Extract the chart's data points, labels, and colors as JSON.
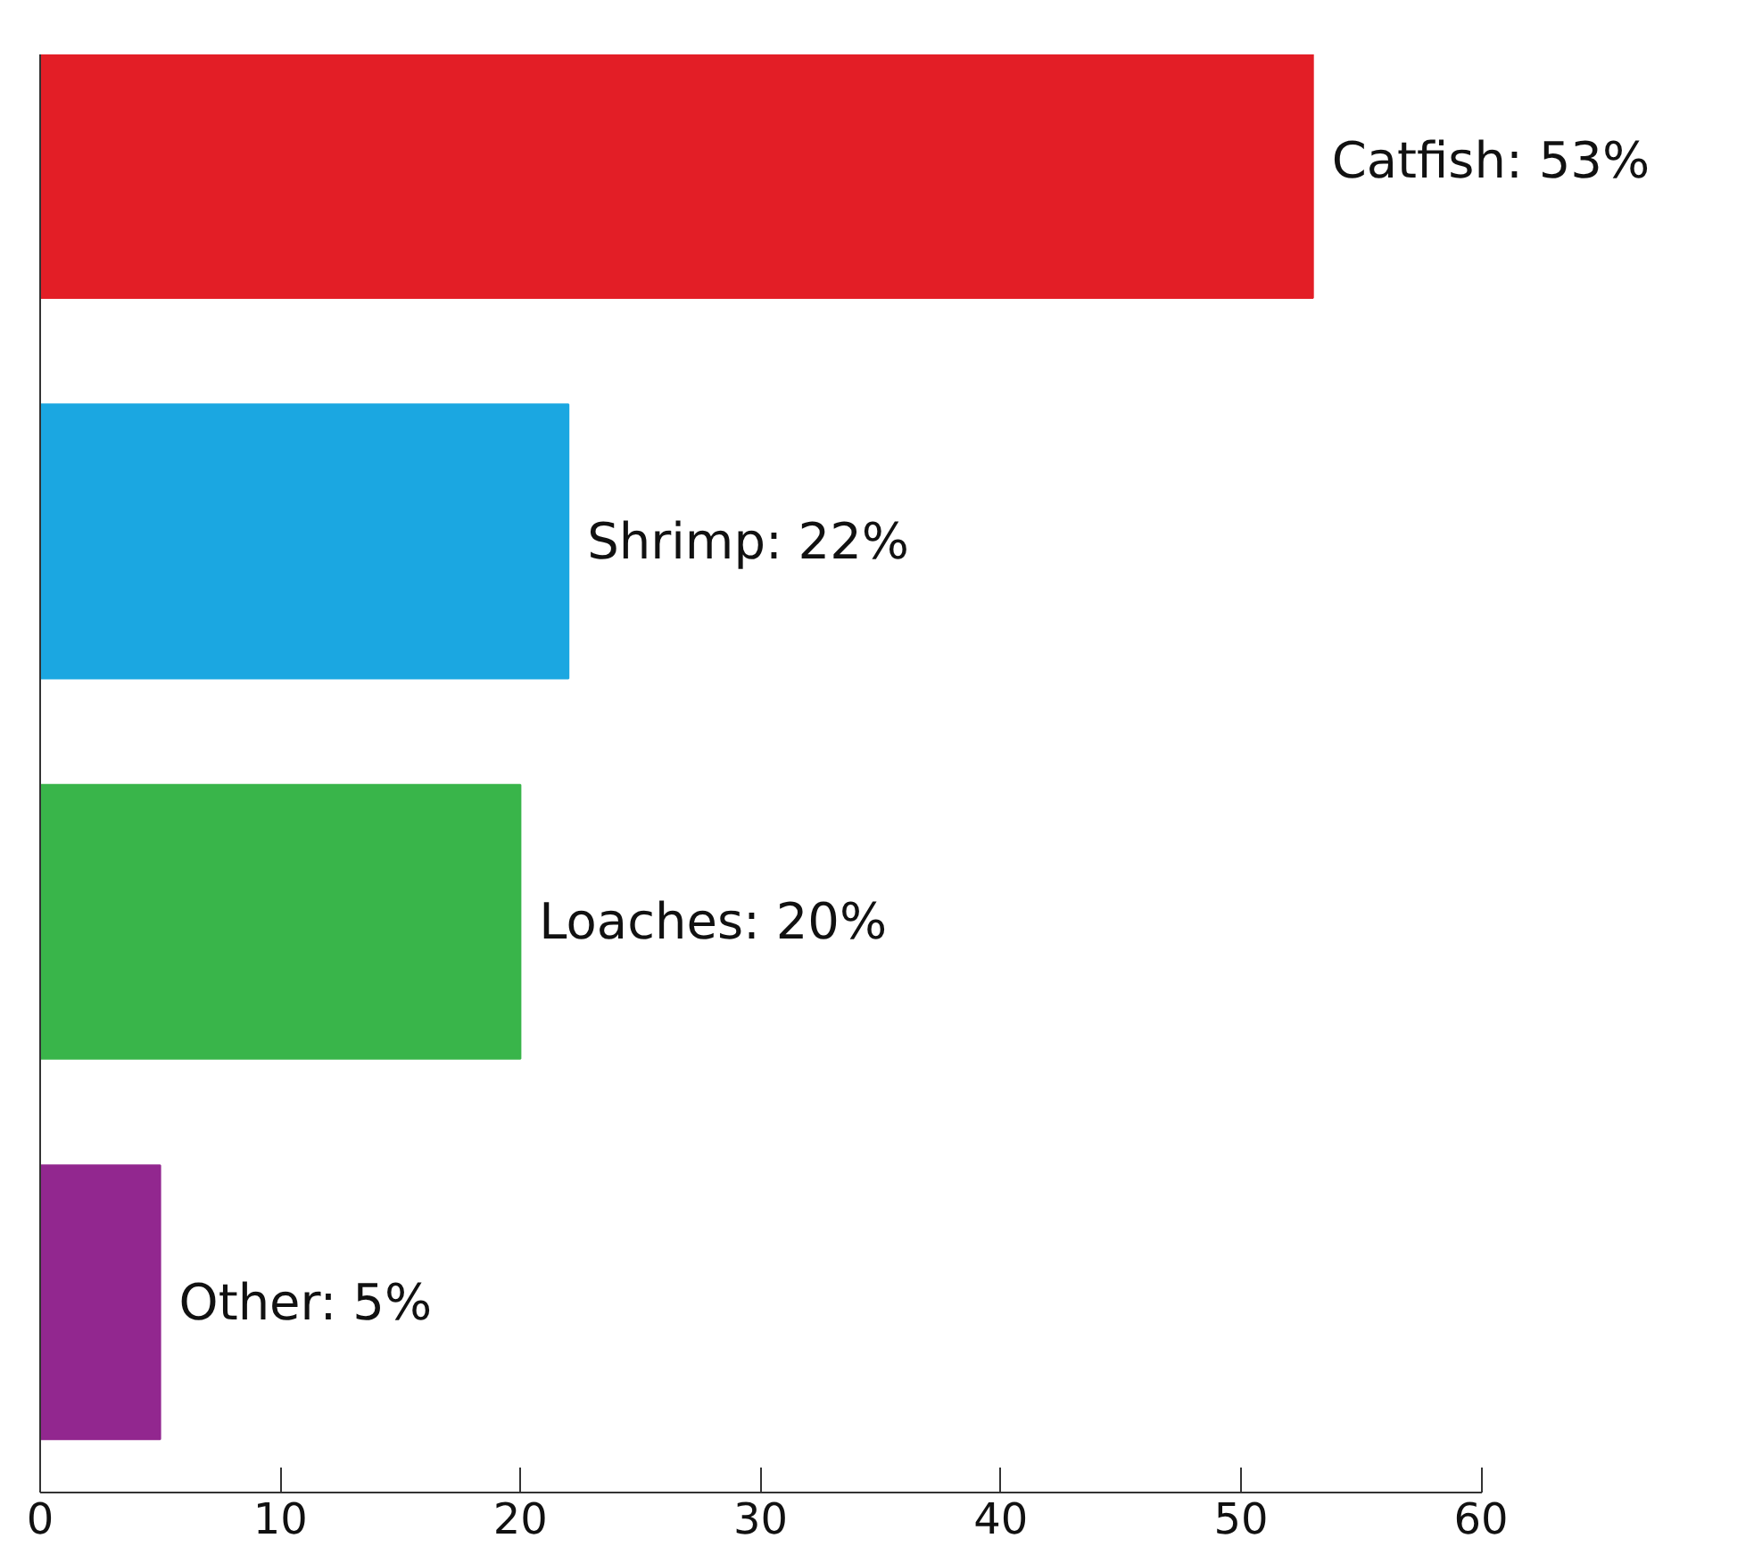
{
  "chart_data": {
    "type": "bar",
    "orientation": "horizontal",
    "categories": [
      null,
      null,
      null,
      null
    ],
    "values": [
      53,
      22,
      20,
      5
    ],
    "colors": [
      "#e31e26",
      "#1ba7e1",
      "#39b54a",
      "#92278f"
    ],
    "value_labels": [
      "Catfish: 53%",
      "Shrimp: 22%",
      "Loaches: 20%",
      "Other: 5%"
    ],
    "xlim": [
      0,
      60
    ],
    "xticks": [
      0,
      10,
      20,
      30,
      40,
      50,
      60
    ],
    "grid": false
  }
}
